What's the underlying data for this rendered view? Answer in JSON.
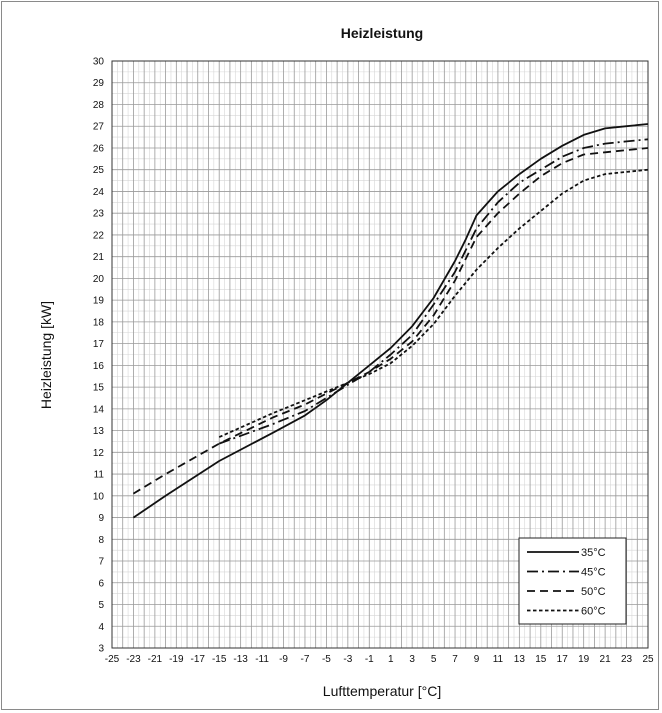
{
  "chart_data": {
    "type": "line",
    "title": "Heizleistung",
    "xlabel": "Lufttemperatur [°C]",
    "ylabel": "Heizleistung [kW]",
    "xlim": [
      -25,
      25
    ],
    "ylim": [
      3,
      30
    ],
    "x_ticks": [
      -25,
      -23,
      -21,
      -19,
      -17,
      -15,
      -13,
      -11,
      -9,
      -7,
      -5,
      -3,
      -1,
      1,
      3,
      5,
      7,
      9,
      11,
      13,
      15,
      17,
      19,
      21,
      23,
      25
    ],
    "y_ticks": [
      3,
      4,
      5,
      6,
      7,
      8,
      9,
      10,
      11,
      12,
      13,
      14,
      15,
      16,
      17,
      18,
      19,
      20,
      21,
      22,
      23,
      24,
      25,
      26,
      27,
      28,
      29,
      30
    ],
    "grid": true,
    "legend_position": "bottom-right",
    "series": [
      {
        "name": "35°C",
        "dash": "solid",
        "points": [
          [
            -23,
            9.0
          ],
          [
            -20,
            10.0
          ],
          [
            -15,
            11.6
          ],
          [
            -10,
            12.9
          ],
          [
            -7,
            13.7
          ],
          [
            -5,
            14.4
          ],
          [
            -3,
            15.2
          ],
          [
            -1,
            16.0
          ],
          [
            1,
            16.8
          ],
          [
            3,
            17.8
          ],
          [
            5,
            19.1
          ],
          [
            7,
            20.8
          ],
          [
            8,
            21.8
          ],
          [
            9,
            22.9
          ],
          [
            11,
            24.0
          ],
          [
            13,
            24.8
          ],
          [
            15,
            25.5
          ],
          [
            17,
            26.1
          ],
          [
            19,
            26.6
          ],
          [
            21,
            26.9
          ],
          [
            23,
            27.0
          ],
          [
            25,
            27.1
          ]
        ]
      },
      {
        "name": "45°C",
        "dash": "dashdot",
        "points": [
          [
            -15,
            12.4
          ],
          [
            -10,
            13.3
          ],
          [
            -7,
            13.9
          ],
          [
            -5,
            14.5
          ],
          [
            -3,
            15.1
          ],
          [
            -1,
            15.7
          ],
          [
            1,
            16.5
          ],
          [
            3,
            17.4
          ],
          [
            5,
            18.8
          ],
          [
            7,
            20.3
          ],
          [
            9,
            22.3
          ],
          [
            11,
            23.5
          ],
          [
            13,
            24.4
          ],
          [
            15,
            25.0
          ],
          [
            17,
            25.6
          ],
          [
            19,
            26.0
          ],
          [
            21,
            26.2
          ],
          [
            23,
            26.3
          ],
          [
            25,
            26.4
          ]
        ]
      },
      {
        "name": "50°C",
        "dash": "dashed",
        "points": [
          [
            -23,
            10.1
          ],
          [
            -20,
            11.0
          ],
          [
            -15,
            12.4
          ],
          [
            -10,
            13.6
          ],
          [
            -7,
            14.2
          ],
          [
            -5,
            14.7
          ],
          [
            -3,
            15.2
          ],
          [
            -1,
            15.7
          ],
          [
            1,
            16.3
          ],
          [
            3,
            17.1
          ],
          [
            5,
            18.3
          ],
          [
            7,
            19.9
          ],
          [
            9,
            21.9
          ],
          [
            11,
            23.0
          ],
          [
            13,
            23.9
          ],
          [
            15,
            24.7
          ],
          [
            17,
            25.3
          ],
          [
            19,
            25.7
          ],
          [
            21,
            25.8
          ],
          [
            23,
            25.9
          ],
          [
            25,
            26.0
          ]
        ]
      },
      {
        "name": "60°C",
        "dash": "dotted",
        "points": [
          [
            -15,
            12.7
          ],
          [
            -10,
            13.8
          ],
          [
            -7,
            14.4
          ],
          [
            -5,
            14.8
          ],
          [
            -3,
            15.2
          ],
          [
            -1,
            15.6
          ],
          [
            1,
            16.1
          ],
          [
            3,
            16.9
          ],
          [
            5,
            17.9
          ],
          [
            7,
            19.2
          ],
          [
            9,
            20.4
          ],
          [
            11,
            21.4
          ],
          [
            13,
            22.3
          ],
          [
            15,
            23.1
          ],
          [
            17,
            23.9
          ],
          [
            19,
            24.5
          ],
          [
            21,
            24.8
          ],
          [
            23,
            24.9
          ],
          [
            25,
            25.0
          ]
        ]
      }
    ]
  }
}
